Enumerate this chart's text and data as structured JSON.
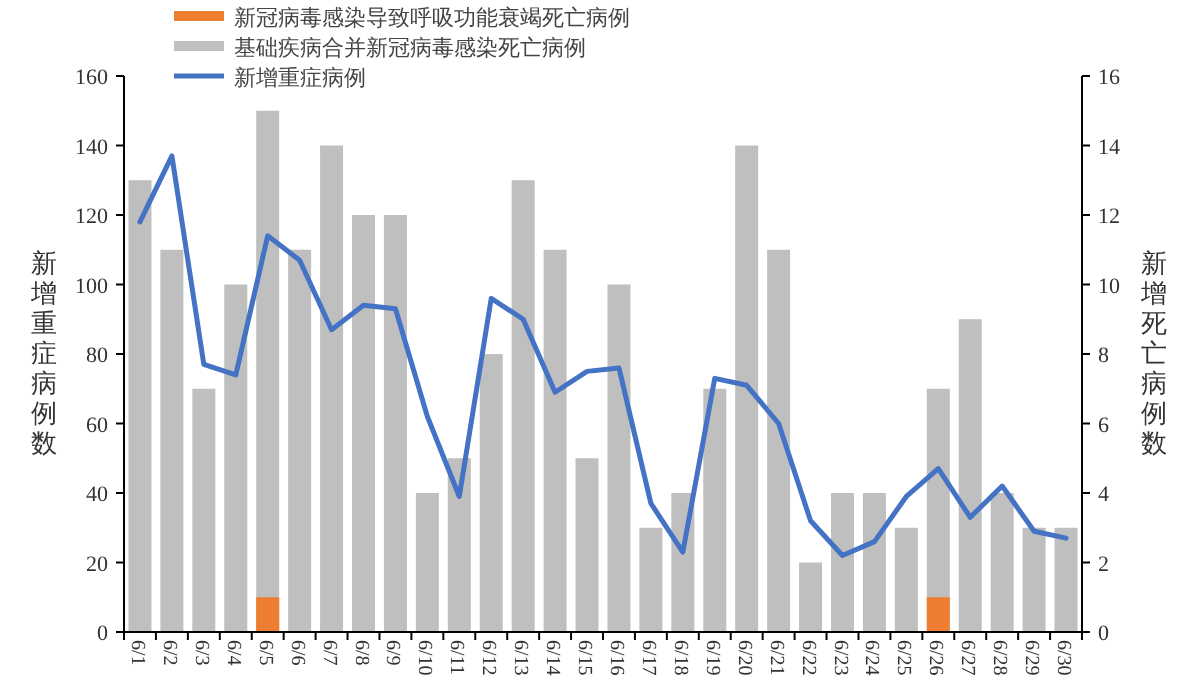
{
  "chart_data": {
    "type": "bar",
    "categories": [
      "6/1",
      "6/2",
      "6/3",
      "6/4",
      "6/5",
      "6/6",
      "6/7",
      "6/8",
      "6/9",
      "6/10",
      "6/11",
      "6/12",
      "6/13",
      "6/14",
      "6/15",
      "6/16",
      "6/17",
      "6/18",
      "6/19",
      "6/20",
      "6/21",
      "6/22",
      "6/23",
      "6/24",
      "6/25",
      "6/26",
      "6/27",
      "6/28",
      "6/29",
      "6/30"
    ],
    "series": [
      {
        "name": "新冠病毒感染导致呼吸功能衰竭死亡病例",
        "axis": "y2",
        "color": "#ed7d31",
        "values": [
          null,
          null,
          null,
          null,
          1,
          null,
          null,
          null,
          null,
          null,
          null,
          null,
          null,
          null,
          null,
          null,
          null,
          null,
          null,
          null,
          null,
          null,
          null,
          null,
          null,
          1,
          null,
          null,
          null,
          null
        ]
      },
      {
        "name": "基础疾病合并新冠病毒感染死亡病例",
        "axis": "y2",
        "color": "#bfbfbf",
        "values": [
          13,
          11,
          7,
          10,
          15,
          11,
          14,
          12,
          12,
          4,
          5,
          8,
          13,
          11,
          5,
          10,
          3,
          4,
          7,
          14,
          11,
          2,
          4,
          4,
          3,
          7,
          9,
          4,
          3,
          3
        ]
      },
      {
        "name": "新增重症病例",
        "type": "line",
        "color": "#4472c4",
        "values": [
          118,
          137,
          77,
          74,
          114,
          107,
          87,
          94,
          93,
          62,
          39,
          96,
          90,
          69,
          75,
          76,
          37,
          23,
          73,
          71,
          60,
          32,
          22,
          26,
          39,
          47,
          33,
          42,
          29,
          27
        ]
      }
    ],
    "ylabel": "新增重症病例数",
    "y2label": "新增死亡病例数",
    "ylim": [
      0,
      160
    ],
    "yticks": [
      0,
      20,
      40,
      60,
      80,
      100,
      120,
      140,
      160
    ],
    "y2lim": [
      0,
      16
    ],
    "y2ticks": [
      0,
      2,
      4,
      6,
      8,
      10,
      12,
      14,
      16
    ],
    "legend": "top left",
    "grid": false,
    "marker": "none"
  }
}
